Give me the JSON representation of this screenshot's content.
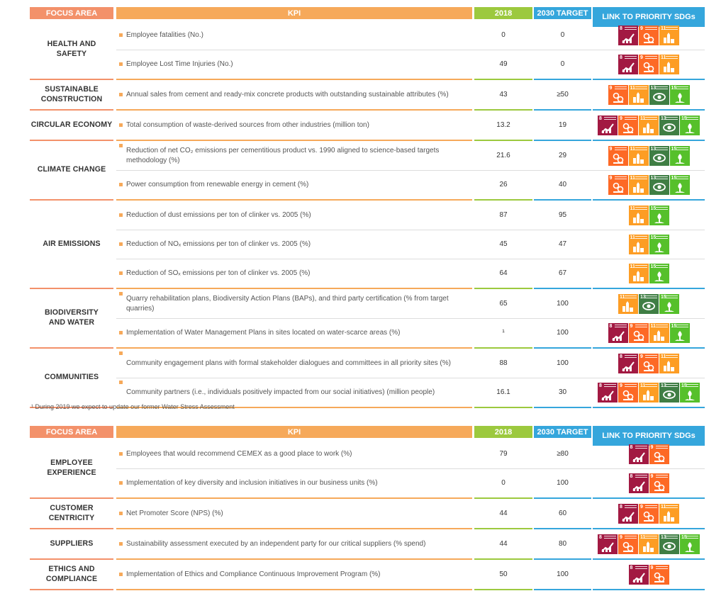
{
  "headers": {
    "focus_area": "FOCUS AREA",
    "kpi": "KPI",
    "year": "2018",
    "target": "2030 TARGET",
    "sdgs": "LINK TO PRIORITY SDGs"
  },
  "table1": [
    {
      "area": "HEALTH AND\nSAFETY",
      "rows": [
        {
          "kpi": "Employee fatalities (No.)",
          "y2018": "0",
          "target": "0",
          "sdgs": [
            8,
            9,
            11
          ]
        },
        {
          "kpi": "Employee Lost Time Injuries (No.)",
          "y2018": "49",
          "target": "0",
          "sdgs": [
            8,
            9,
            11
          ]
        }
      ]
    },
    {
      "area": "SUSTAINABLE\nCONSTRUCTION",
      "rows": [
        {
          "kpi": "Annual sales from cement and ready-mix concrete products with outstanding sustainable attributes (%)",
          "y2018": "43",
          "target": "≥50",
          "sdgs": [
            9,
            11,
            13,
            15
          ]
        }
      ]
    },
    {
      "area": "CIRCULAR ECONOMY",
      "rows": [
        {
          "kpi": "Total consumption of waste-derived sources from other industries (million ton)",
          "y2018": "13.2",
          "target": "19",
          "sdgs": [
            8,
            9,
            11,
            13,
            15
          ]
        }
      ]
    },
    {
      "area": "CLIMATE CHANGE",
      "rows": [
        {
          "kpi": "Reduction of net CO₂ emissions per cementitious product vs. 1990 aligned to science-based targets methodology (%)",
          "y2018": "21.6",
          "target": "29",
          "sdgs": [
            9,
            11,
            13,
            15
          ]
        },
        {
          "kpi": "Power consumption from renewable energy in cement (%)",
          "y2018": "26",
          "target": "40",
          "sdgs": [
            9,
            11,
            13,
            15
          ]
        }
      ]
    },
    {
      "area": "AIR EMISSIONS",
      "rows": [
        {
          "kpi": "Reduction of dust emissions per ton of clinker vs. 2005 (%)",
          "y2018": "87",
          "target": "95",
          "sdgs": [
            11,
            15
          ]
        },
        {
          "kpi": "Reduction of NOₓ emissions per ton of clinker vs. 2005 (%)",
          "y2018": "45",
          "target": "47",
          "sdgs": [
            11,
            15
          ]
        },
        {
          "kpi": "Reduction of SOₓ emissions per ton of clinker vs. 2005 (%)",
          "y2018": "64",
          "target": "67",
          "sdgs": [
            11,
            15
          ]
        }
      ]
    },
    {
      "area": "BIODIVERSITY\nAND WATER",
      "rows": [
        {
          "kpi": "Quarry rehabilitation plans, Biodiversity Action Plans (BAPs), and third party certification (% from target quarries)",
          "y2018": "65",
          "target": "100",
          "sdgs": [
            11,
            13,
            15
          ]
        },
        {
          "kpi": "Implementation of Water Management Plans in sites located on water-scarce areas (%)",
          "y2018": "¹",
          "target": "100",
          "sdgs": [
            8,
            9,
            11,
            15
          ]
        }
      ]
    },
    {
      "area": "COMMUNITIES",
      "rows": [
        {
          "kpi": "Community engagement plans with formal stakeholder dialogues and committees in all priority sites (%)",
          "y2018": "88",
          "target": "100",
          "sdgs": [
            8,
            9,
            11
          ]
        },
        {
          "kpi": "Community partners (i.e., individuals positively impacted from our social initiatives) (million people)",
          "y2018": "16.1",
          "target": "30",
          "sdgs": [
            8,
            9,
            11,
            13,
            15
          ]
        }
      ]
    }
  ],
  "footnote": "¹ During 2019 we expect to update our former Water Stress Assessment",
  "table2": [
    {
      "area": "EMPLOYEE\nEXPERIENCE",
      "rows": [
        {
          "kpi": "Employees that would recommend CEMEX as a good place to work (%)",
          "y2018": "79",
          "target": "≥80",
          "sdgs": [
            8,
            9
          ]
        },
        {
          "kpi": "Implementation of key diversity and inclusion initiatives in our business units (%)",
          "y2018": "0",
          "target": "100",
          "sdgs": [
            8,
            9
          ]
        }
      ]
    },
    {
      "area": "CUSTOMER CENTRICITY",
      "rows": [
        {
          "kpi": "Net Promoter Score (NPS) (%)",
          "y2018": "44",
          "target": "60",
          "sdgs": [
            8,
            9,
            11
          ]
        }
      ]
    },
    {
      "area": "SUPPLIERS",
      "rows": [
        {
          "kpi": "Sustainability assessment executed by an independent party for our critical suppliers (% spend)",
          "y2018": "44",
          "target": "80",
          "sdgs": [
            8,
            9,
            11,
            13,
            15
          ]
        }
      ]
    },
    {
      "area": "ETHICS AND\nCOMPLIANCE",
      "rows": [
        {
          "kpi": "Implementation of Ethics and Compliance Continuous Improvement Program (%)",
          "y2018": "50",
          "target": "100",
          "sdgs": [
            8,
            9
          ]
        }
      ]
    }
  ],
  "sdg_icons": {
    "8": {
      "name": "sdg-8-decent-work-icon",
      "color": "#a21942"
    },
    "9": {
      "name": "sdg-9-industry-innovation-icon",
      "color": "#fd6925"
    },
    "11": {
      "name": "sdg-11-sustainable-cities-icon",
      "color": "#fd9d24"
    },
    "13": {
      "name": "sdg-13-climate-action-icon",
      "color": "#3f7e44"
    },
    "15": {
      "name": "sdg-15-life-on-land-icon",
      "color": "#56c02b"
    }
  }
}
